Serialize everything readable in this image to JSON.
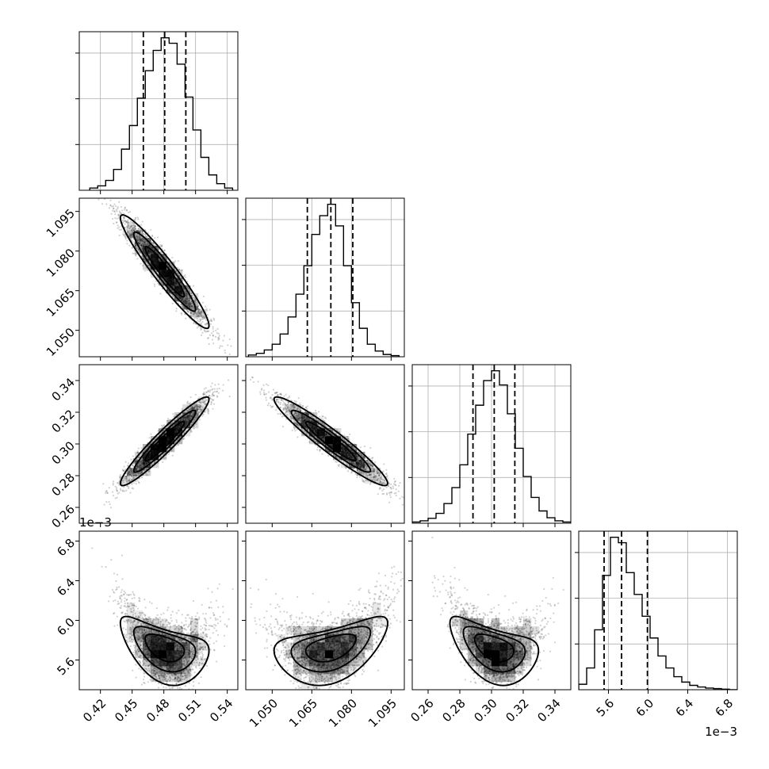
{
  "chart_data": {
    "type": "corner",
    "ylabels": [
      "",
      "",
      "",
      ""
    ],
    "panels_1d": [
      {
        "param_index": 0,
        "range": [
          0.4,
          0.55
        ],
        "bin_centers": [
          0.4137,
          0.4212,
          0.4287,
          0.4362,
          0.4437,
          0.4512,
          0.4587,
          0.4662,
          0.4737,
          0.4812,
          0.4888,
          0.4963,
          0.5038,
          0.5113,
          0.5188,
          0.5263,
          0.5338,
          0.5413
        ],
        "counts": [
          4,
          8,
          18,
          38,
          75,
          118,
          168,
          218,
          255,
          278,
          268,
          230,
          170,
          110,
          60,
          28,
          12,
          4
        ],
        "quantiles": [
          0.4606,
          0.4808,
          0.5008
        ]
      },
      {
        "param_index": 1,
        "range": [
          1.04,
          1.1
        ],
        "bin_centers": [
          1.0425,
          1.0455,
          1.0485,
          1.0515,
          1.0545,
          1.0575,
          1.0605,
          1.0635,
          1.0665,
          1.0695,
          1.0725,
          1.0755,
          1.0785,
          1.0815,
          1.0845,
          1.0875,
          1.0905,
          1.0935,
          1.0965
        ],
        "counts": [
          3,
          6,
          12,
          22,
          40,
          70,
          110,
          160,
          215,
          248,
          268,
          230,
          160,
          95,
          50,
          22,
          10,
          4,
          2
        ],
        "quantiles": [
          1.0633,
          1.0722,
          1.0805
        ]
      },
      {
        "param_index": 2,
        "range": [
          0.25,
          0.35
        ],
        "bin_centers": [
          0.2525,
          0.2575,
          0.2625,
          0.2675,
          0.2725,
          0.2775,
          0.2825,
          0.2875,
          0.2925,
          0.2975,
          0.3025,
          0.3075,
          0.3125,
          0.3175,
          0.3225,
          0.3275,
          0.3325,
          0.3375,
          0.3425,
          0.3475
        ],
        "counts": [
          2,
          4,
          8,
          16,
          32,
          58,
          95,
          145,
          192,
          232,
          248,
          225,
          178,
          122,
          76,
          42,
          20,
          9,
          4,
          2
        ],
        "quantiles": [
          0.2883,
          0.3017,
          0.3147
        ]
      },
      {
        "param_index": 3,
        "range": [
          5.3,
          6.9
        ],
        "bin_centers": [
          5.34,
          5.42,
          5.5,
          5.58,
          5.66,
          5.74,
          5.82,
          5.9,
          5.98,
          6.06,
          6.14,
          6.22,
          6.3,
          6.38,
          6.46,
          6.54,
          6.62,
          6.7,
          6.78,
          6.86
        ],
        "counts": [
          10,
          40,
          110,
          210,
          280,
          270,
          215,
          175,
          135,
          95,
          62,
          40,
          24,
          14,
          8,
          5,
          3,
          2,
          1,
          0
        ],
        "quantiles": [
          5.556,
          5.732,
          5.993
        ]
      }
    ],
    "panels_2d": [
      {
        "x_param": 0,
        "y_param": 1,
        "center": [
          0.4808,
          1.0722
        ],
        "sigma": [
          0.0195,
          0.01
        ],
        "correlation": -0.95
      },
      {
        "x_param": 0,
        "y_param": 2,
        "center": [
          0.4808,
          0.3017
        ],
        "sigma": [
          0.0195,
          0.013
        ],
        "correlation": 0.95
      },
      {
        "x_param": 1,
        "y_param": 2,
        "center": [
          1.0722,
          0.3017
        ],
        "sigma": [
          0.01,
          0.013
        ],
        "correlation": -0.95
      },
      {
        "x_param": 0,
        "y_param": 3,
        "center": [
          0.4808,
          5.732
        ],
        "sigma": [
          0.0195,
          0.26
        ],
        "correlation": -0.45
      },
      {
        "x_param": 1,
        "y_param": 3,
        "center": [
          1.0722,
          5.732
        ],
        "sigma": [
          0.01,
          0.26
        ],
        "correlation": 0.45
      },
      {
        "x_param": 2,
        "y_param": 3,
        "center": [
          0.3017,
          5.732
        ],
        "sigma": [
          0.013,
          0.26
        ],
        "correlation": -0.45
      }
    ],
    "axes": [
      {
        "param_index": 0,
        "range": [
          0.4,
          0.55
        ],
        "ticks": [
          0.42,
          0.45,
          0.48,
          0.51,
          0.54
        ],
        "tick_labels": [
          "0.42",
          "0.45",
          "0.48",
          "0.51",
          "0.54"
        ],
        "offset_label": ""
      },
      {
        "param_index": 1,
        "range": [
          1.04,
          1.1
        ],
        "ticks": [
          1.05,
          1.065,
          1.08,
          1.095
        ],
        "tick_labels": [
          "1.050",
          "1.065",
          "1.080",
          "1.095"
        ],
        "offset_label": ""
      },
      {
        "param_index": 2,
        "range": [
          0.25,
          0.35
        ],
        "ticks": [
          0.26,
          0.28,
          0.3,
          0.32,
          0.34
        ],
        "tick_labels": [
          "0.26",
          "0.28",
          "0.30",
          "0.32",
          "0.34"
        ],
        "offset_label": ""
      },
      {
        "param_index": 3,
        "range": [
          5.3,
          6.9
        ],
        "ticks": [
          5.6,
          6.0,
          6.4,
          6.8
        ],
        "tick_labels": [
          "5.6",
          "6.0",
          "6.4",
          "6.8"
        ],
        "offset_label": "1e−3"
      }
    ],
    "grid": true,
    "quantile_style": "dashed"
  }
}
